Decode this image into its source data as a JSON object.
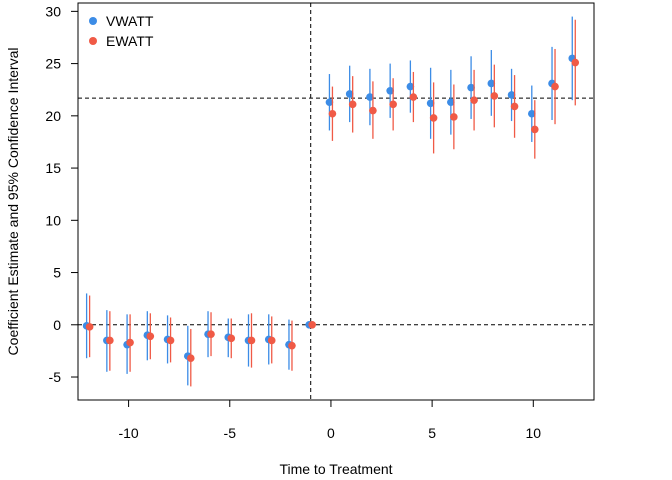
{
  "chart_data": {
    "type": "scatter",
    "title": "",
    "xlabel": "Time to Treatment",
    "ylabel": "Coefficient Estimate and 95% Confidence Interval",
    "xlim": [
      -12.5,
      13.0
    ],
    "ylim": [
      -7.2,
      30.8
    ],
    "xticks": [
      -10,
      -5,
      0,
      5,
      10
    ],
    "xtick_labels": [
      "-10",
      "-5",
      "0",
      "5",
      "10"
    ],
    "yticks": [
      -5,
      0,
      5,
      10,
      15,
      20,
      25,
      30
    ],
    "ytick_labels": [
      "-5",
      "0",
      "5",
      "10",
      "15",
      "20",
      "25",
      "30"
    ],
    "grid": false,
    "legend_position": "top-left",
    "reference_lines": {
      "vertical_x": -1,
      "horizontal_y": [
        0,
        21.7
      ]
    },
    "series": [
      {
        "name": "VWATT",
        "color": "#3c8ce6",
        "points": [
          {
            "x": -12,
            "y": -0.1,
            "lo": -3.2,
            "hi": 3.0
          },
          {
            "x": -11,
            "y": -1.5,
            "lo": -4.5,
            "hi": 1.4
          },
          {
            "x": -10,
            "y": -1.9,
            "lo": -4.7,
            "hi": 1.0
          },
          {
            "x": -9,
            "y": -1.0,
            "lo": -3.4,
            "hi": 1.3
          },
          {
            "x": -8,
            "y": -1.4,
            "lo": -3.7,
            "hi": 0.9
          },
          {
            "x": -7,
            "y": -3.0,
            "lo": -5.8,
            "hi": -0.1
          },
          {
            "x": -6,
            "y": -0.9,
            "lo": -3.1,
            "hi": 1.3
          },
          {
            "x": -5,
            "y": -1.2,
            "lo": -3.1,
            "hi": 0.6
          },
          {
            "x": -4,
            "y": -1.5,
            "lo": -4.0,
            "hi": 1.0
          },
          {
            "x": -3,
            "y": -1.4,
            "lo": -3.8,
            "hi": 1.0
          },
          {
            "x": -2,
            "y": -1.9,
            "lo": -4.3,
            "hi": 0.5
          },
          {
            "x": -1,
            "y": 0.0,
            "lo": 0.0,
            "hi": 0.0
          },
          {
            "x": 0,
            "y": 21.3,
            "lo": 18.6,
            "hi": 24.0
          },
          {
            "x": 1,
            "y": 22.1,
            "lo": 19.4,
            "hi": 24.8
          },
          {
            "x": 2,
            "y": 21.8,
            "lo": 19.1,
            "hi": 24.5
          },
          {
            "x": 3,
            "y": 22.4,
            "lo": 19.8,
            "hi": 25.0
          },
          {
            "x": 4,
            "y": 22.8,
            "lo": 20.3,
            "hi": 25.3
          },
          {
            "x": 5,
            "y": 21.2,
            "lo": 17.8,
            "hi": 24.6
          },
          {
            "x": 6,
            "y": 21.3,
            "lo": 18.2,
            "hi": 24.4
          },
          {
            "x": 7,
            "y": 22.7,
            "lo": 19.7,
            "hi": 25.7
          },
          {
            "x": 8,
            "y": 23.1,
            "lo": 20.0,
            "hi": 26.3
          },
          {
            "x": 9,
            "y": 22.0,
            "lo": 19.5,
            "hi": 24.5
          },
          {
            "x": 10,
            "y": 20.2,
            "lo": 17.5,
            "hi": 22.9
          },
          {
            "x": 11,
            "y": 23.1,
            "lo": 19.6,
            "hi": 26.6
          },
          {
            "x": 12,
            "y": 25.5,
            "lo": 21.5,
            "hi": 29.5
          }
        ]
      },
      {
        "name": "EWATT",
        "color": "#f05a46",
        "points": [
          {
            "x": -12,
            "y": -0.2,
            "lo": -3.1,
            "hi": 2.8
          },
          {
            "x": -11,
            "y": -1.5,
            "lo": -4.4,
            "hi": 1.3
          },
          {
            "x": -10,
            "y": -1.7,
            "lo": -4.5,
            "hi": 1.0
          },
          {
            "x": -9,
            "y": -1.1,
            "lo": -3.3,
            "hi": 1.1
          },
          {
            "x": -8,
            "y": -1.5,
            "lo": -3.6,
            "hi": 0.7
          },
          {
            "x": -7,
            "y": -3.2,
            "lo": -5.9,
            "hi": -0.4
          },
          {
            "x": -6,
            "y": -0.9,
            "lo": -3.0,
            "hi": 1.2
          },
          {
            "x": -5,
            "y": -1.3,
            "lo": -3.2,
            "hi": 0.6
          },
          {
            "x": -4,
            "y": -1.5,
            "lo": -4.1,
            "hi": 1.1
          },
          {
            "x": -3,
            "y": -1.5,
            "lo": -3.7,
            "hi": 0.8
          },
          {
            "x": -2,
            "y": -2.0,
            "lo": -4.4,
            "hi": 0.4
          },
          {
            "x": -1,
            "y": 0.0,
            "lo": 0.0,
            "hi": 0.0
          },
          {
            "x": 0,
            "y": 20.2,
            "lo": 17.6,
            "hi": 22.8
          },
          {
            "x": 1,
            "y": 21.1,
            "lo": 18.4,
            "hi": 23.8
          },
          {
            "x": 2,
            "y": 20.5,
            "lo": 17.8,
            "hi": 23.3
          },
          {
            "x": 3,
            "y": 21.1,
            "lo": 18.6,
            "hi": 23.6
          },
          {
            "x": 4,
            "y": 21.8,
            "lo": 19.4,
            "hi": 24.2
          },
          {
            "x": 5,
            "y": 19.8,
            "lo": 16.4,
            "hi": 23.2
          },
          {
            "x": 6,
            "y": 19.9,
            "lo": 16.8,
            "hi": 23.0
          },
          {
            "x": 7,
            "y": 21.5,
            "lo": 18.6,
            "hi": 24.4
          },
          {
            "x": 8,
            "y": 21.9,
            "lo": 18.9,
            "hi": 24.9
          },
          {
            "x": 9,
            "y": 20.9,
            "lo": 17.9,
            "hi": 23.9
          },
          {
            "x": 10,
            "y": 18.7,
            "lo": 15.9,
            "hi": 21.5
          },
          {
            "x": 11,
            "y": 22.8,
            "lo": 19.2,
            "hi": 26.4
          },
          {
            "x": 12,
            "y": 25.1,
            "lo": 21.0,
            "hi": 29.2
          }
        ]
      }
    ]
  }
}
